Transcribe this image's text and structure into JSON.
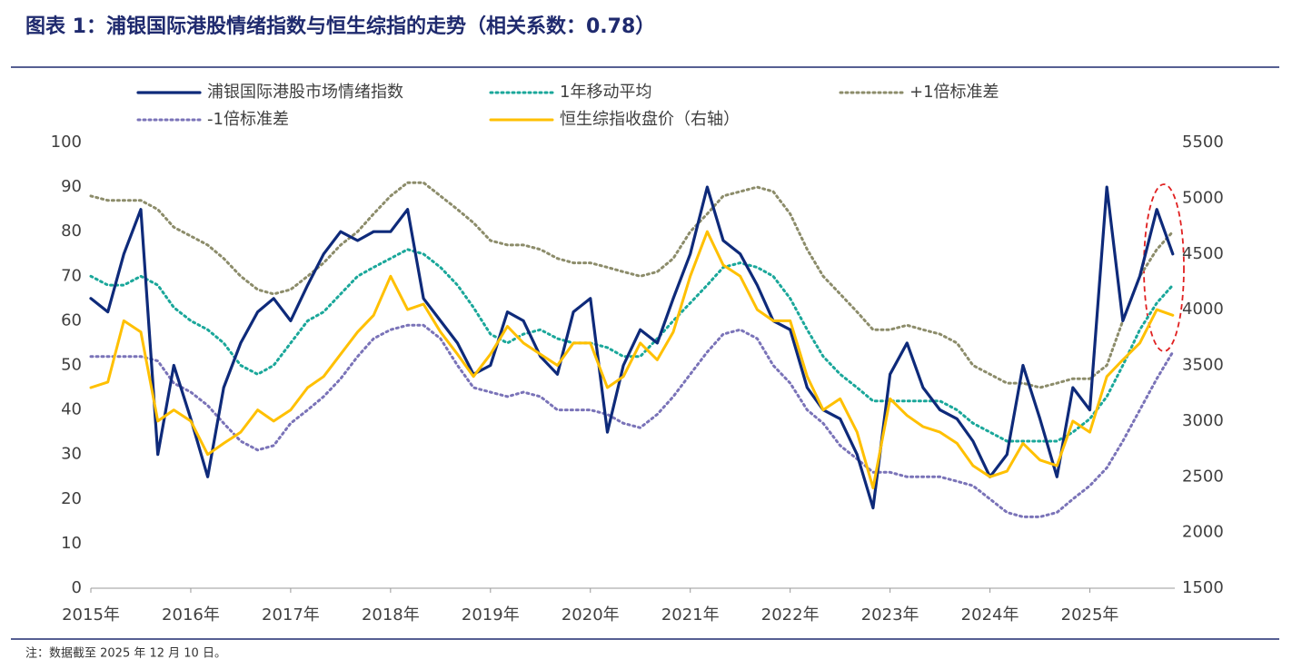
{
  "chart_data": {
    "type": "line",
    "title": "图表 1：浦银国际港股情绪指数与恒生综指的走势（相关系数：0.78）",
    "note": "注：数据截至 2025 年 12 月 10 日。",
    "x": [
      2015,
      2015.17,
      2015.33,
      2015.5,
      2015.67,
      2015.83,
      2016,
      2016.17,
      2016.33,
      2016.5,
      2016.67,
      2016.83,
      2017,
      2017.17,
      2017.33,
      2017.5,
      2017.67,
      2017.83,
      2018,
      2018.17,
      2018.33,
      2018.5,
      2018.67,
      2018.83,
      2019,
      2019.17,
      2019.33,
      2019.5,
      2019.67,
      2019.83,
      2020,
      2020.17,
      2020.33,
      2020.5,
      2020.67,
      2020.83,
      2021,
      2021.17,
      2021.33,
      2021.5,
      2021.67,
      2021.83,
      2022,
      2022.17,
      2022.33,
      2022.5,
      2022.67,
      2022.83,
      2023,
      2023.17,
      2023.33,
      2023.5,
      2023.67,
      2023.83,
      2024,
      2024.17,
      2024.33,
      2024.5,
      2024.67,
      2024.83,
      2025,
      2025.17,
      2025.33,
      2025.5,
      2025.67,
      2025.83
    ],
    "xlim": [
      2015,
      2025.85
    ],
    "xticks": [
      {
        "value": 2015,
        "label": "2015年"
      },
      {
        "value": 2016,
        "label": "2016年"
      },
      {
        "value": 2017,
        "label": "2017年"
      },
      {
        "value": 2018,
        "label": "2018年"
      },
      {
        "value": 2019,
        "label": "2019年"
      },
      {
        "value": 2020,
        "label": "2020年"
      },
      {
        "value": 2021,
        "label": "2021年"
      },
      {
        "value": 2022,
        "label": "2022年"
      },
      {
        "value": 2023,
        "label": "2023年"
      },
      {
        "value": 2024,
        "label": "2024年"
      },
      {
        "value": 2025,
        "label": "2025年"
      }
    ],
    "ylim": [
      0,
      100
    ],
    "yticks": [
      0,
      10,
      20,
      30,
      40,
      50,
      60,
      70,
      80,
      90,
      100
    ],
    "y2lim": [
      1500,
      5500
    ],
    "y2ticks": [
      1500,
      2000,
      2500,
      3000,
      3500,
      4000,
      4500,
      5000,
      5500
    ],
    "series": [
      {
        "name": "浦银国际港股市场情绪指数",
        "color": "#0e2a7a",
        "dash": "solid",
        "values": [
          65,
          62,
          75,
          85,
          30,
          50,
          38,
          25,
          45,
          55,
          62,
          65,
          60,
          68,
          75,
          80,
          78,
          80,
          80,
          85,
          65,
          60,
          55,
          48,
          50,
          62,
          60,
          52,
          48,
          62,
          65,
          35,
          50,
          58,
          55,
          65,
          75,
          90,
          78,
          75,
          68,
          60,
          58,
          45,
          40,
          38,
          30,
          18,
          48,
          55,
          45,
          40,
          38,
          33,
          25,
          30,
          50,
          38,
          25,
          45,
          40,
          90,
          60,
          70,
          85,
          75
        ]
      },
      {
        "name": "1年移动平均",
        "color": "#1aa79a",
        "dash": "dotted",
        "values": [
          70,
          68,
          68,
          70,
          68,
          63,
          60,
          58,
          55,
          50,
          48,
          50,
          55,
          60,
          62,
          66,
          70,
          72,
          74,
          76,
          75,
          72,
          68,
          63,
          57,
          55,
          57,
          58,
          56,
          55,
          55,
          54,
          52,
          52,
          56,
          60,
          64,
          68,
          72,
          73,
          72,
          70,
          65,
          58,
          52,
          48,
          45,
          42,
          42,
          42,
          42,
          42,
          40,
          37,
          35,
          33,
          33,
          33,
          33,
          35,
          38,
          43,
          50,
          58,
          64,
          68
        ]
      },
      {
        "name": "+1倍标准差",
        "color": "#8c8c6a",
        "dash": "dotted",
        "values": [
          88,
          87,
          87,
          87,
          85,
          81,
          79,
          77,
          74,
          70,
          67,
          66,
          67,
          70,
          73,
          77,
          80,
          84,
          88,
          91,
          91,
          88,
          85,
          82,
          78,
          77,
          77,
          76,
          74,
          73,
          73,
          72,
          71,
          70,
          71,
          74,
          80,
          84,
          88,
          89,
          90,
          89,
          84,
          76,
          70,
          66,
          62,
          58,
          58,
          59,
          58,
          57,
          55,
          50,
          48,
          46,
          46,
          45,
          46,
          47,
          47,
          50,
          60,
          70,
          76,
          80
        ]
      },
      {
        "name": "-1倍标准差",
        "color": "#7a73b8",
        "dash": "dotted",
        "values": [
          52,
          52,
          52,
          52,
          51,
          46,
          44,
          41,
          37,
          33,
          31,
          32,
          37,
          40,
          43,
          47,
          52,
          56,
          58,
          59,
          59,
          56,
          50,
          45,
          44,
          43,
          44,
          43,
          40,
          40,
          40,
          39,
          37,
          36,
          39,
          43,
          48,
          53,
          57,
          58,
          56,
          50,
          46,
          40,
          37,
          32,
          29,
          26,
          26,
          25,
          25,
          25,
          24,
          23,
          20,
          17,
          16,
          16,
          17,
          20,
          23,
          27,
          33,
          40,
          47,
          53
        ]
      },
      {
        "name": "恒生综指收盘价（右轴）",
        "color": "#ffc000",
        "dash": "solid",
        "axis": "y2",
        "values": [
          3300,
          3350,
          3900,
          3800,
          3000,
          3100,
          3000,
          2700,
          2800,
          2900,
          3100,
          3000,
          3100,
          3300,
          3400,
          3600,
          3800,
          3950,
          4300,
          4000,
          4050,
          3800,
          3600,
          3400,
          3600,
          3850,
          3700,
          3600,
          3500,
          3700,
          3700,
          3300,
          3400,
          3700,
          3550,
          3800,
          4300,
          4700,
          4400,
          4300,
          4000,
          3900,
          3900,
          3400,
          3100,
          3200,
          2900,
          2400,
          3200,
          3050,
          2950,
          2900,
          2800,
          2600,
          2500,
          2550,
          2800,
          2650,
          2600,
          3000,
          2900,
          3400,
          3550,
          3700,
          4000,
          3950
        ]
      }
    ]
  }
}
